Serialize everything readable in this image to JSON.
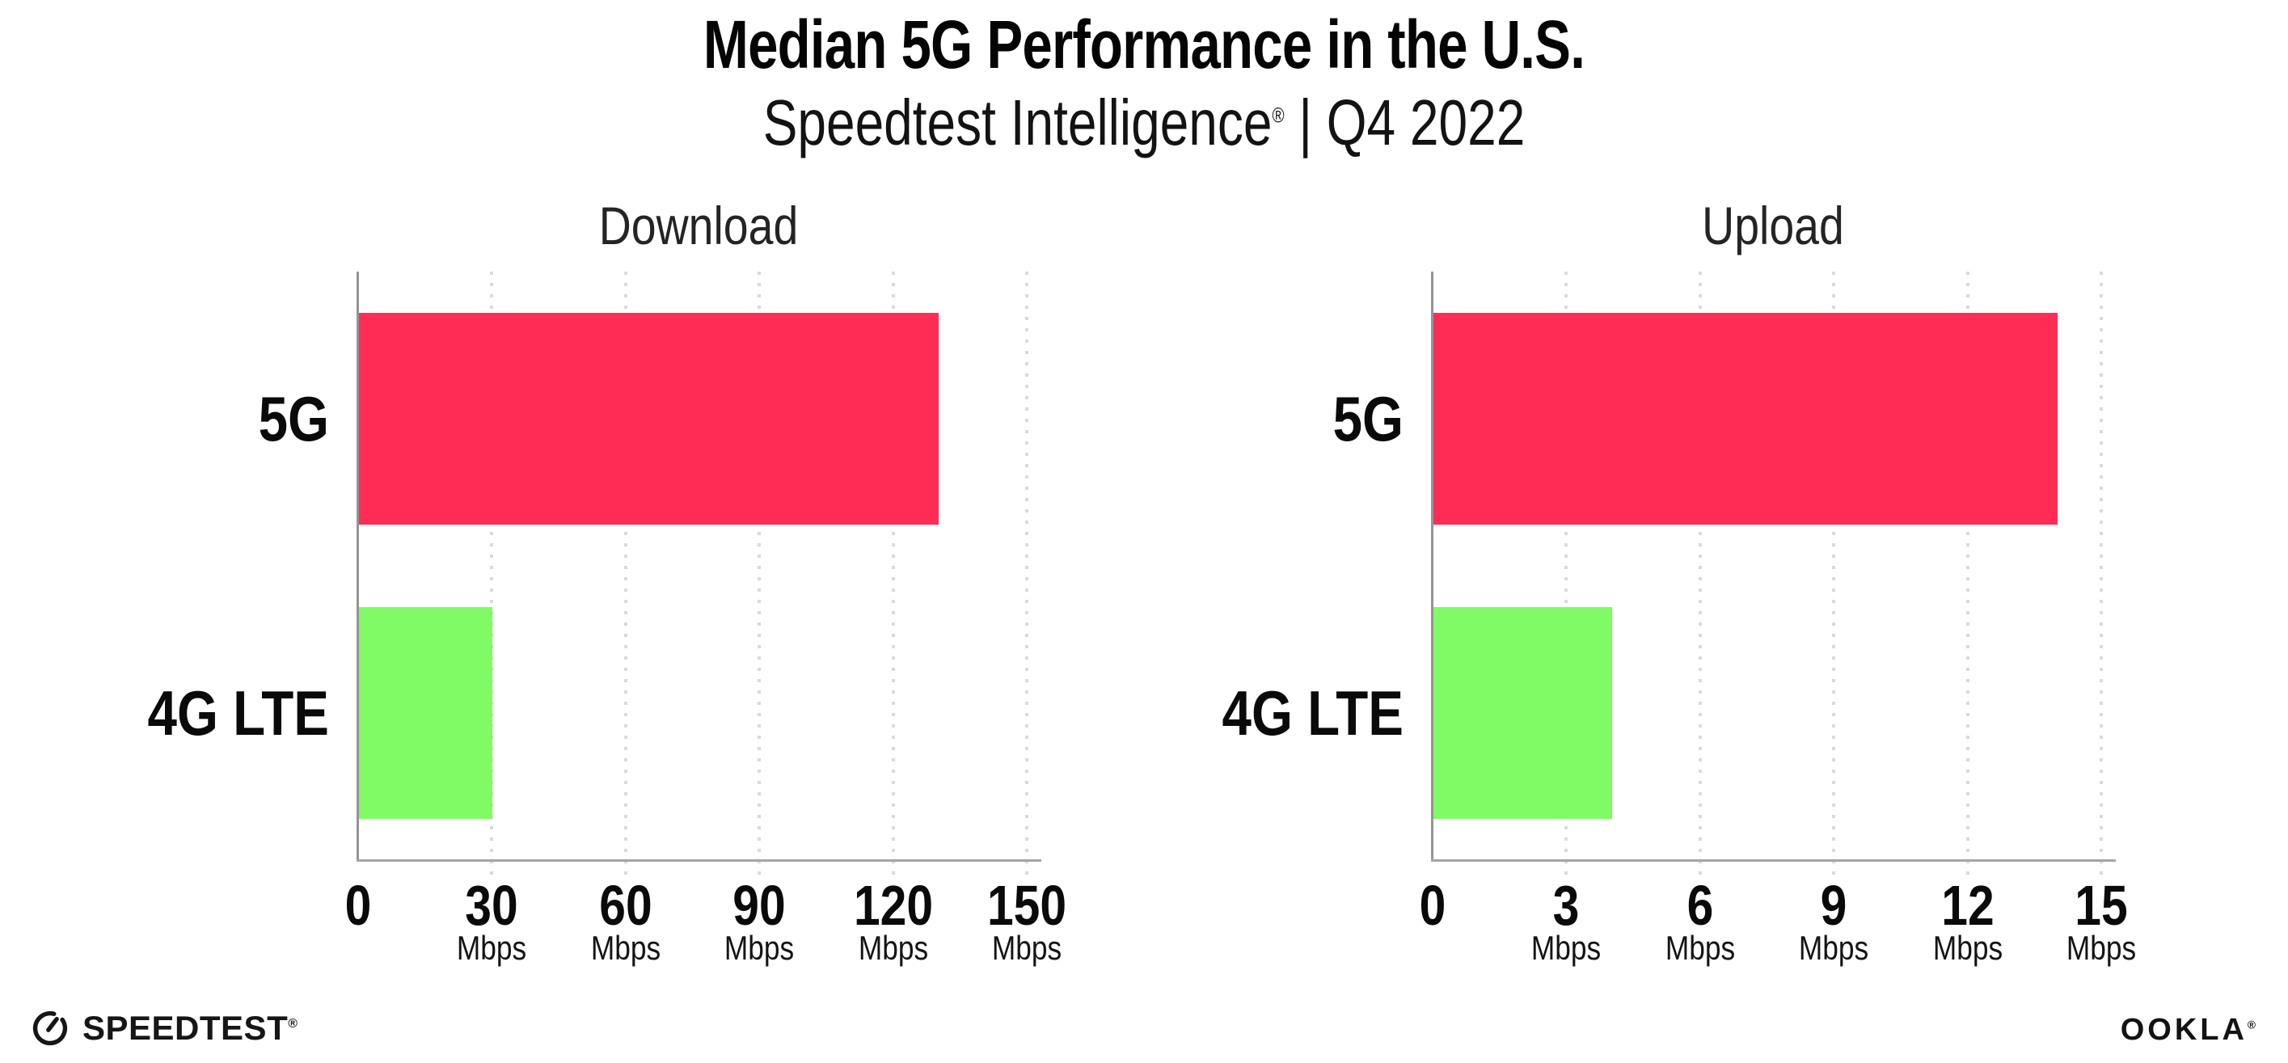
{
  "header": {
    "title": "Median 5G Performance in the U.S.",
    "subtitle_brand": "Speedtest Intelligence",
    "subtitle_reg": "®",
    "subtitle_period": " | Q4 2022"
  },
  "chart_data": [
    {
      "type": "bar",
      "orientation": "horizontal",
      "title": "Download",
      "categories": [
        "5G",
        "4G LTE"
      ],
      "values": [
        130,
        30
      ],
      "unit": "Mbps",
      "ticks": [
        0,
        30,
        60,
        90,
        120,
        150
      ],
      "xlim": [
        0,
        153
      ],
      "grid": "dotted-vertical",
      "legend": "none",
      "bar_colors": [
        "#FF2D55",
        "#80FB66"
      ]
    },
    {
      "type": "bar",
      "orientation": "horizontal",
      "title": "Upload",
      "categories": [
        "5G",
        "4G LTE"
      ],
      "values": [
        14,
        4
      ],
      "unit": "Mbps",
      "ticks": [
        0,
        3,
        6,
        9,
        12,
        15
      ],
      "xlim": [
        0,
        15.3
      ],
      "grid": "dotted-vertical",
      "legend": "none",
      "bar_colors": [
        "#FF2D55",
        "#80FB66"
      ]
    }
  ],
  "footer": {
    "speedtest_label": "SPEEDTEST",
    "speedtest_reg": "®",
    "ookla_label": "OOKLA",
    "ookla_reg": "®"
  },
  "colors": {
    "bar_5g": "#FF2D55",
    "bar_4g_lte": "#80FB66",
    "x_axis": "#A6A6A6",
    "y_axis": "#949494",
    "gridline": "#D9D9E3",
    "text": "#0C0C0C",
    "background": "#FFFFFF"
  }
}
